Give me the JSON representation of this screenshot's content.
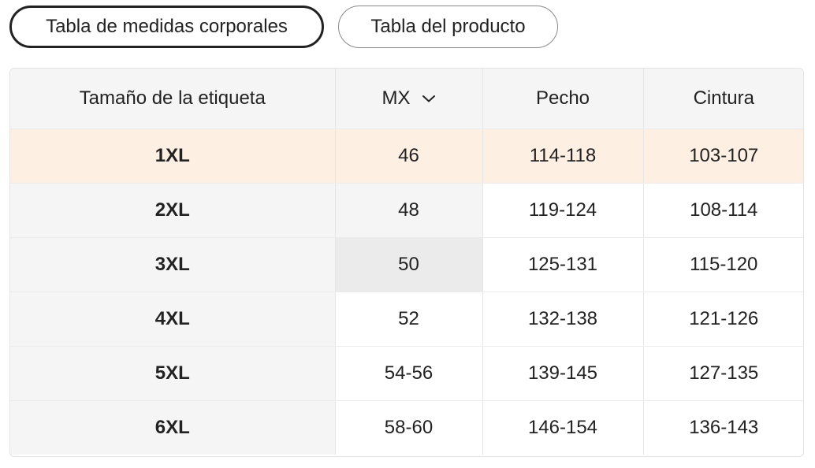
{
  "tabs": [
    {
      "label": "Tabla de medidas corporales",
      "active": true
    },
    {
      "label": "Tabla del producto",
      "active": false
    }
  ],
  "table": {
    "headers": {
      "size": "Tamaño de la etiqueta",
      "region": "MX",
      "chest": "Pecho",
      "waist": "Cintura"
    },
    "region_dropdown_icon": "chevron-down-icon",
    "highlight_color": "#fdefe1",
    "rows": [
      {
        "size": "1XL",
        "mx": "46",
        "chest": "114-118",
        "waist": "103-107"
      },
      {
        "size": "2XL",
        "mx": "48",
        "chest": "119-124",
        "waist": "108-114"
      },
      {
        "size": "3XL",
        "mx": "50",
        "chest": "125-131",
        "waist": "115-120"
      },
      {
        "size": "4XL",
        "mx": "52",
        "chest": "132-138",
        "waist": "121-126"
      },
      {
        "size": "5XL",
        "mx": "54-56",
        "chest": "139-145",
        "waist": "127-135"
      },
      {
        "size": "6XL",
        "mx": "58-60",
        "chest": "146-154",
        "waist": "136-143"
      }
    ]
  }
}
